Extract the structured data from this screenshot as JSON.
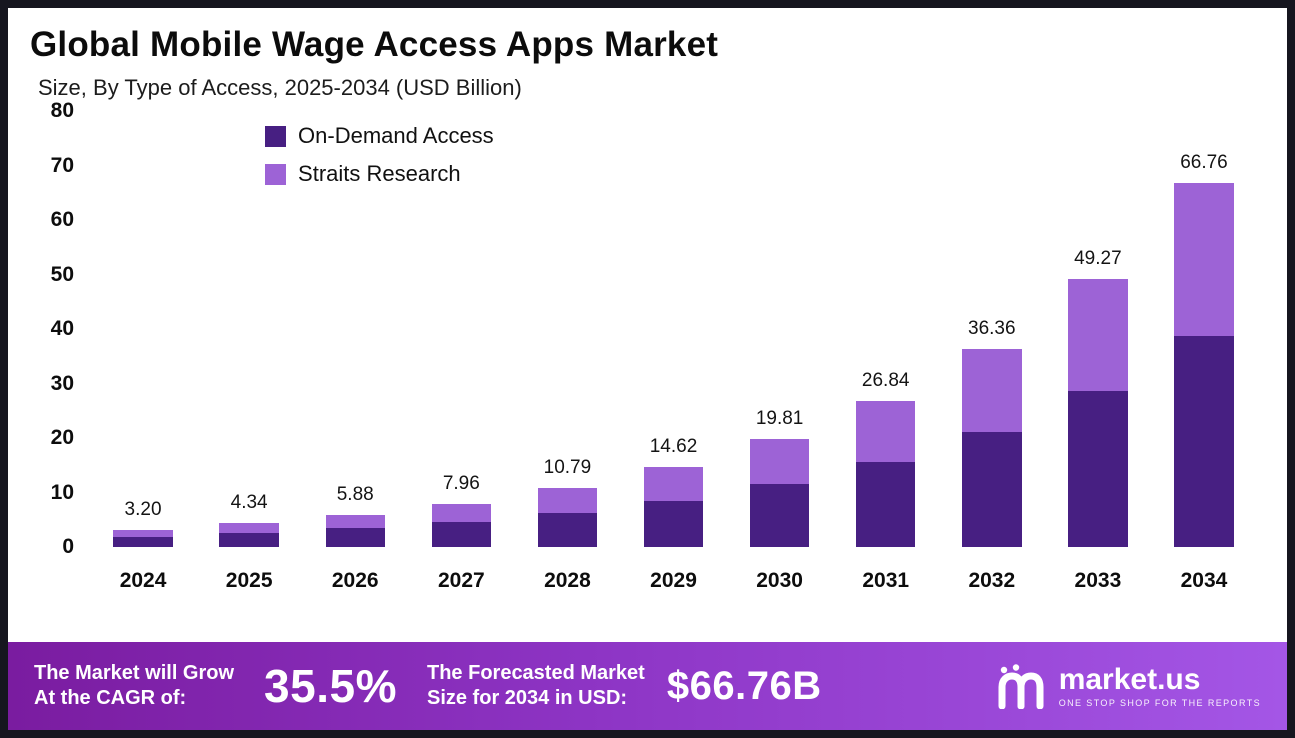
{
  "header": {
    "title": "Global Mobile Wage Access Apps Market",
    "subtitle": "Size, By Type of Access, 2025-2034 (USD Billion)"
  },
  "chart_data": {
    "type": "bar",
    "stacked": true,
    "title": "Global Mobile Wage Access Apps Market",
    "subtitle": "Size, By Type of Access, 2025-2034 (USD Billion)",
    "categories": [
      "2024",
      "2025",
      "2026",
      "2027",
      "2028",
      "2029",
      "2030",
      "2031",
      "2032",
      "2033",
      "2034"
    ],
    "series": [
      {
        "name": "On-Demand Access",
        "color": "#471f82",
        "values": [
          1.86,
          2.52,
          3.41,
          4.62,
          6.26,
          8.48,
          11.49,
          15.57,
          21.09,
          28.58,
          38.72
        ]
      },
      {
        "name": "Straits Research",
        "color": "#9d63d6",
        "values": [
          1.34,
          1.82,
          2.47,
          3.34,
          4.53,
          6.14,
          8.32,
          11.27,
          15.27,
          20.69,
          28.04
        ]
      }
    ],
    "totals": [
      "3.20",
      "4.34",
      "5.88",
      "7.96",
      "10.79",
      "14.62",
      "19.81",
      "26.84",
      "36.36",
      "49.27",
      "66.76"
    ],
    "total_values": [
      3.2,
      4.34,
      5.88,
      7.96,
      10.79,
      14.62,
      19.81,
      26.84,
      36.36,
      49.27,
      66.76
    ],
    "xlabel": "",
    "ylabel": "",
    "ylim": [
      0,
      80
    ],
    "yticks": [
      0,
      10,
      20,
      30,
      40,
      50,
      60,
      70,
      80
    ],
    "grid": false,
    "legend_position": "top-left"
  },
  "banner": {
    "left_label_line1": "The Market will Grow",
    "left_label_line2": "At the CAGR of:",
    "cagr_value": "35.5%",
    "mid_label_line1": "The Forecasted Market",
    "mid_label_line2": "Size for 2034 in USD:",
    "forecast_value": "$66.76B",
    "logo_text": "market.us",
    "logo_tagline": "ONE STOP SHOP FOR THE REPORTS"
  },
  "colors": {
    "on_demand_access": "#471f82",
    "straits_research": "#9d63d6",
    "banner_gradient_start": "#7a1ca0",
    "banner_gradient_end": "#a456e6",
    "frame_border": "#16161f",
    "background": "#ffffff"
  }
}
